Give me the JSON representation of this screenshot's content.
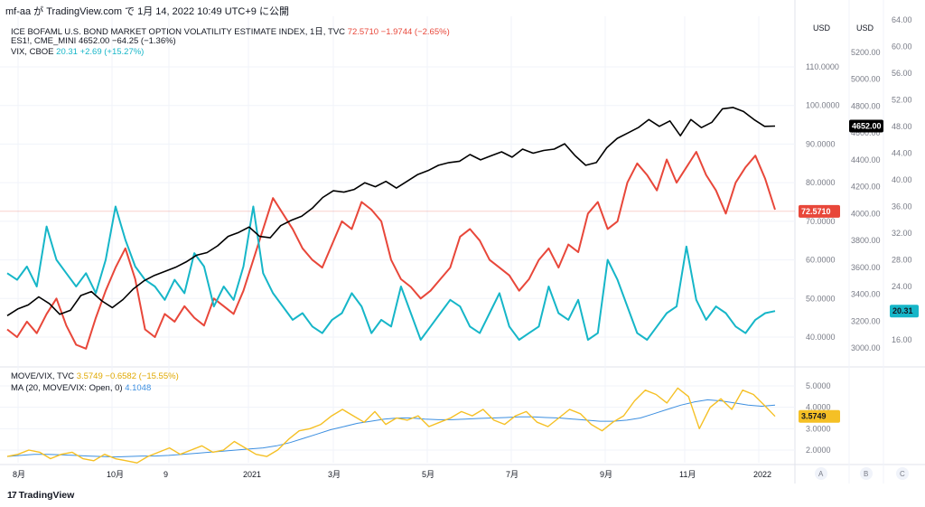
{
  "header": "mf-aa が TradingView.com で 1月 14, 2022 10:49 UTC+9 に公開",
  "brand": "TradingView",
  "legend": {
    "move": {
      "name": "ICE BOFAML U.S. BOND MARKET OPTION VOLATILITY ESTIMATE INDEX, 1日, TVC",
      "value": "72.5710",
      "change": "−1.9744 (−2.65%)"
    },
    "es": {
      "name": "ES1!, CME_MINI",
      "value": "4652.00",
      "change": "−64.25 (−1.36%)"
    },
    "vix": {
      "name": "VIX, CBOE",
      "value": "20.31",
      "change": "+2.69 (+15.27%)"
    },
    "ratio": {
      "name": "MOVE/VIX, TVC",
      "value": "3.5749",
      "change": "−0.6582 (−15.55%)"
    },
    "ma": {
      "name": "MA (20, MOVE/VIX: Open, 0)",
      "value": "4.1048"
    }
  },
  "colors": {
    "move": "#e8473a",
    "es": "#000000",
    "vix": "#16b6c8",
    "ratio": "#f5c025",
    "ma": "#3d8fe0",
    "grid": "#f0f3fa",
    "axis": "#787b86"
  },
  "chart_data": [
    {
      "type": "line",
      "x_ticks": [
        "8月",
        "10月",
        "9",
        "2021",
        "3月",
        "5月",
        "7月",
        "9月",
        "11月",
        "2022"
      ],
      "scales": [
        {
          "id": "MOVE",
          "unit": "USD",
          "ticks": [
            "110.0000",
            "100.0000",
            "90.0000",
            "80.0000",
            "70.0000",
            "60.0000",
            "50.0000",
            "40.0000"
          ],
          "tick_values": [
            110,
            100,
            90,
            80,
            70,
            60,
            50,
            40
          ],
          "last_label": "72.5710"
        },
        {
          "id": "ES",
          "unit": "USD",
          "ticks": [
            "5200.00",
            "5000.00",
            "4800.00",
            "4600.00",
            "4400.00",
            "4200.00",
            "4000.00",
            "3800.00",
            "3600.00",
            "3400.00",
            "3200.00",
            "3000.00"
          ],
          "tick_values": [
            5200,
            5000,
            4800,
            4600,
            4400,
            4200,
            4000,
            3800,
            3600,
            3400,
            3200,
            3000
          ],
          "last_label": "4652.00"
        },
        {
          "id": "VIX",
          "unit": "",
          "ticks": [
            "64.00",
            "60.00",
            "56.00",
            "52.00",
            "48.00",
            "44.00",
            "40.00",
            "36.00",
            "32.00",
            "28.00",
            "24.00",
            "20.00",
            "16.00"
          ],
          "tick_values": [
            64,
            60,
            56,
            52,
            48,
            44,
            40,
            36,
            32,
            28,
            24,
            20,
            16
          ],
          "last_label": "20.31"
        }
      ],
      "series": [
        {
          "name": "ICE BOFAML U.S. BOND MARKET OPTION VOLATILITY ESTIMATE INDEX",
          "scale": "MOVE",
          "values": [
            42,
            40,
            44,
            41,
            46,
            50,
            43,
            38,
            37,
            45,
            52,
            58,
            63,
            55,
            42,
            40,
            46,
            44,
            48,
            45,
            43,
            50,
            48,
            46,
            52,
            60,
            68,
            76,
            72,
            68,
            63,
            60,
            58,
            64,
            70,
            68,
            75,
            73,
            70,
            60,
            55,
            53,
            50,
            52,
            55,
            58,
            66,
            68,
            65,
            60,
            58,
            56,
            52,
            55,
            60,
            63,
            58,
            64,
            62,
            72,
            75,
            68,
            70,
            80,
            85,
            82,
            78,
            86,
            80,
            84,
            88,
            82,
            78,
            72,
            80,
            84,
            87,
            81,
            73
          ]
        },
        {
          "name": "ES1!",
          "scale": "ES",
          "values": [
            3240,
            3290,
            3320,
            3380,
            3330,
            3250,
            3280,
            3390,
            3420,
            3350,
            3300,
            3360,
            3440,
            3500,
            3540,
            3570,
            3600,
            3640,
            3690,
            3710,
            3760,
            3830,
            3860,
            3900,
            3830,
            3820,
            3910,
            3950,
            3980,
            4040,
            4120,
            4170,
            4160,
            4180,
            4230,
            4200,
            4240,
            4190,
            4240,
            4290,
            4320,
            4360,
            4380,
            4390,
            4440,
            4400,
            4430,
            4460,
            4420,
            4480,
            4450,
            4470,
            4480,
            4520,
            4430,
            4360,
            4380,
            4490,
            4560,
            4600,
            4640,
            4700,
            4650,
            4690,
            4580,
            4700,
            4640,
            4680,
            4780,
            4790,
            4760,
            4700,
            4650,
            4652
          ]
        },
        {
          "name": "VIX",
          "scale": "VIX",
          "values": [
            26,
            25,
            27,
            24,
            33,
            28,
            26,
            24,
            26,
            23,
            28,
            36,
            31,
            27,
            25,
            24,
            22,
            25,
            23,
            29,
            27,
            21,
            24,
            22,
            27,
            36,
            26,
            23,
            21,
            19,
            20,
            18,
            17,
            19,
            20,
            23,
            21,
            17,
            19,
            18,
            24,
            20,
            16,
            18,
            20,
            22,
            21,
            18,
            17,
            20,
            23,
            18,
            16,
            17,
            18,
            24,
            20,
            19,
            22,
            16,
            17,
            28,
            25,
            21,
            17,
            16,
            18,
            20,
            21,
            30,
            22,
            19,
            21,
            20,
            18,
            17,
            19,
            20,
            20.31
          ]
        },
        {
          "name": "MOVE/VIX",
          "scale": "RATIO",
          "values": [
            1.7,
            1.8,
            2.0,
            1.9,
            1.6,
            1.8,
            1.9,
            1.6,
            1.5,
            1.8,
            1.6,
            1.5,
            1.4,
            1.7,
            1.9,
            2.1,
            1.8,
            2.0,
            2.2,
            1.9,
            2.0,
            2.4,
            2.1,
            1.8,
            1.7,
            2.0,
            2.5,
            2.9,
            3.0,
            3.2,
            3.6,
            3.9,
            3.6,
            3.3,
            3.8,
            3.2,
            3.5,
            3.4,
            3.6,
            3.1,
            3.3,
            3.5,
            3.8,
            3.6,
            3.9,
            3.4,
            3.2,
            3.6,
            3.8,
            3.3,
            3.1,
            3.5,
            3.9,
            3.7,
            3.2,
            2.9,
            3.3,
            3.6,
            4.3,
            4.8,
            4.6,
            4.2,
            4.9,
            4.5,
            3.0,
            4.0,
            4.4,
            3.9,
            4.8,
            4.6,
            4.1,
            3.5749
          ]
        },
        {
          "name": "MA (20, MOVE/VIX: Open, 0)",
          "scale": "RATIO",
          "values": [
            1.7,
            1.75,
            1.8,
            1.8,
            1.78,
            1.75,
            1.72,
            1.7,
            1.68,
            1.7,
            1.72,
            1.72,
            1.75,
            1.8,
            1.85,
            1.9,
            1.95,
            2.0,
            2.05,
            2.1,
            2.2,
            2.35,
            2.55,
            2.75,
            2.95,
            3.1,
            3.25,
            3.35,
            3.45,
            3.5,
            3.5,
            3.45,
            3.42,
            3.42,
            3.45,
            3.48,
            3.5,
            3.52,
            3.55,
            3.55,
            3.52,
            3.5,
            3.45,
            3.4,
            3.35,
            3.35,
            3.4,
            3.5,
            3.7,
            3.9,
            4.1,
            4.25,
            4.35,
            4.3,
            4.2,
            4.1,
            4.05,
            4.1048
          ]
        }
      ]
    },
    {
      "type": "line",
      "scales": [
        {
          "id": "RATIO",
          "ticks": [
            "5.0000",
            "4.0000",
            "3.0000",
            "2.0000"
          ],
          "tick_values": [
            5,
            4,
            3,
            2
          ],
          "last_label": "3.5749"
        }
      ]
    }
  ],
  "axis_buttons": [
    "A",
    "B",
    "C"
  ]
}
